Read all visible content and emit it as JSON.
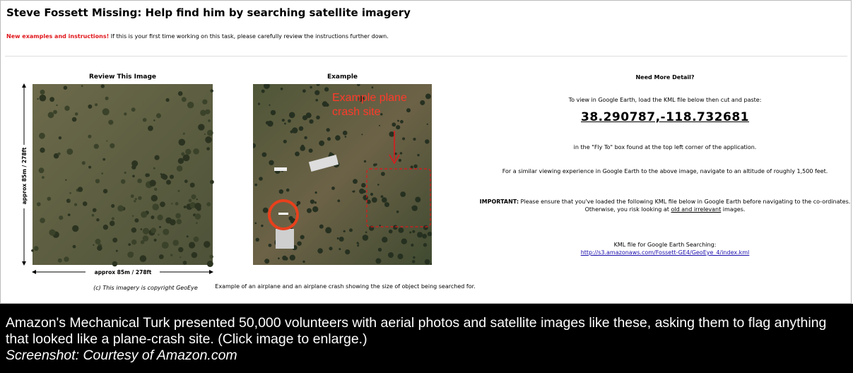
{
  "header": {
    "title": "Steve Fossett Missing: Help find him by searching satellite imagery",
    "notice_strong": "New examples and instructions!",
    "notice_text": " If this is your first time working on this task, please carefully review the instructions further down."
  },
  "review": {
    "heading": "Review This Image",
    "vertical_scale": "approx 85m / 278ft",
    "horizontal_scale": "approx 85m / 278ft",
    "copyright": "(c) This imagery is copyright GeoEye"
  },
  "example": {
    "heading": "Example",
    "overlay": "Example plane crash site",
    "caption": "Example of an airplane and an airplane crash showing the size of object being searched for."
  },
  "detail": {
    "heading": "Need More Detail?",
    "intro": "To view in Google Earth, load the KML file below then cut and paste:",
    "coordinates": "38.290787,-118.732681",
    "fly_to": "in the \"Fly To\" box found at the top left corner of the application.",
    "altitude": "For a similar viewing experience in Google Earth to the above image, navigate to an altitude of roughly 1,500 feet.",
    "important_label": "IMPORTANT:",
    "important_text": " Please ensure that you've loaded the following KML file below in Google Earth before navigating to the co-ordinates. Otherwise, you risk looking at ",
    "important_link": "old and irrelevant",
    "important_end": " images.",
    "kml_label": "KML file for Google Earth Searching:",
    "kml_url": "http://s3.amazonaws.com/Fossett-GE4/GeoEye_4/index.kml"
  },
  "caption": {
    "text": "Amazon's Mechanical Turk presented 50,000 volunteers with aerial photos and satellite images like these, asking them to flag anything that looked like a plane-crash site. (Click image to enlarge.)",
    "credit": "Screenshot: Courtesy of Amazon.com"
  }
}
